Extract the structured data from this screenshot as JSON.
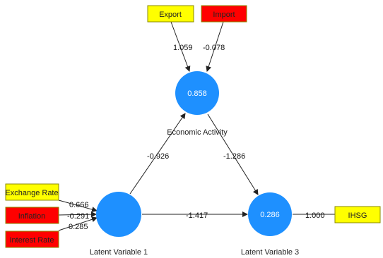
{
  "indicators": {
    "export": {
      "label": "Export",
      "color": "#ffff00"
    },
    "import": {
      "label": "Import",
      "color": "#ff0000"
    },
    "exchange": {
      "label": "Exchange Rate",
      "color": "#ffff00"
    },
    "inflation": {
      "label": "Inflation",
      "color": "#ff0000"
    },
    "interest": {
      "label": "Interest Rate",
      "color": "#ff0000"
    },
    "ihsg": {
      "label": "IHSG",
      "color": "#ffff00"
    }
  },
  "latent": {
    "economic": {
      "name": "Economic Activity",
      "value": "0.858"
    },
    "lv1": {
      "name": "Latent Variable 1",
      "value": ""
    },
    "lv3": {
      "name": "Latent Variable 3",
      "value": "0.286"
    }
  },
  "paths": {
    "export_econ": "1.059",
    "import_econ": "-0.078",
    "lv1_econ": "-0.926",
    "econ_lv3": "-1.286",
    "lv1_lv3": "-1.417",
    "exchange_lv1": "0.666",
    "inflation_lv1": "-0.291",
    "interest_lv1": "0.285",
    "lv3_ihsg": "1.000"
  },
  "colors": {
    "latent": "#1e90ff",
    "box_border": "#8a8a00",
    "arrow": "#222222"
  }
}
